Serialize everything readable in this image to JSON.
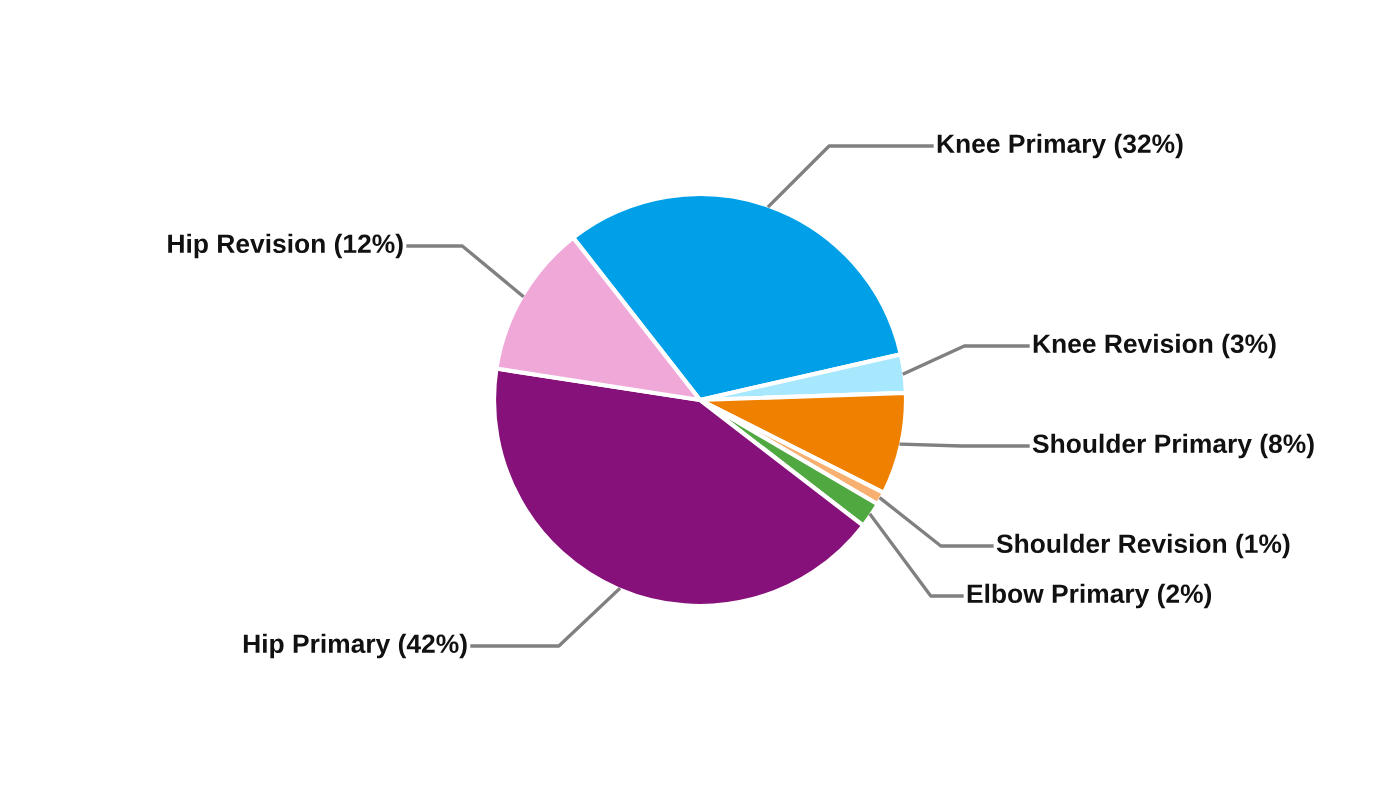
{
  "chart_data": {
    "type": "pie",
    "categories": [
      "Knee Primary (32%)",
      "Knee Revision (3%)",
      "Shoulder Primary (8%)",
      "Shoulder Revision (1%)",
      "Elbow Primary (2%)",
      "Hip Primary (42%)",
      "Hip Revision (12%)"
    ],
    "values": [
      32,
      3,
      8,
      1,
      2,
      42,
      12
    ],
    "colors": [
      "#00a0e9",
      "#a8e8ff",
      "#f08000",
      "#f8b070",
      "#50a840",
      "#86117a",
      "#f0a8d8"
    ],
    "legend": false
  }
}
